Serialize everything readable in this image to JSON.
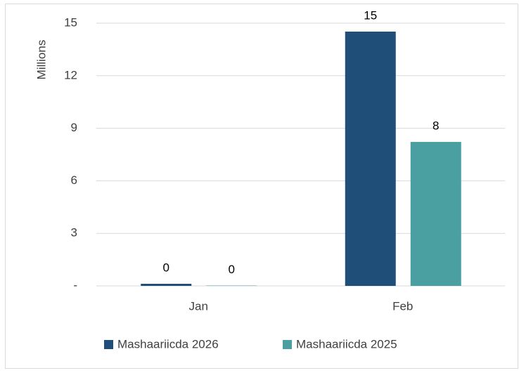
{
  "chart_data": {
    "type": "bar",
    "y_label": "Millions",
    "categories": [
      "Jan",
      "Feb"
    ],
    "series": [
      {
        "name": "Mashaariicda 2026",
        "color": "#1f4e79",
        "values": [
          0.12,
          14.52
        ],
        "value_labels": [
          "0",
          "15"
        ]
      },
      {
        "name": "Mashaariicda 2025",
        "color": "#4a9fa0",
        "values": [
          0.02,
          8.22
        ],
        "value_labels": [
          "0",
          "8"
        ]
      }
    ],
    "ylim": [
      0,
      15
    ],
    "yticks": [
      {
        "value": 0,
        "label": "-"
      },
      3,
      6,
      9,
      12,
      15
    ],
    "grid": true,
    "legend": "bottom"
  }
}
